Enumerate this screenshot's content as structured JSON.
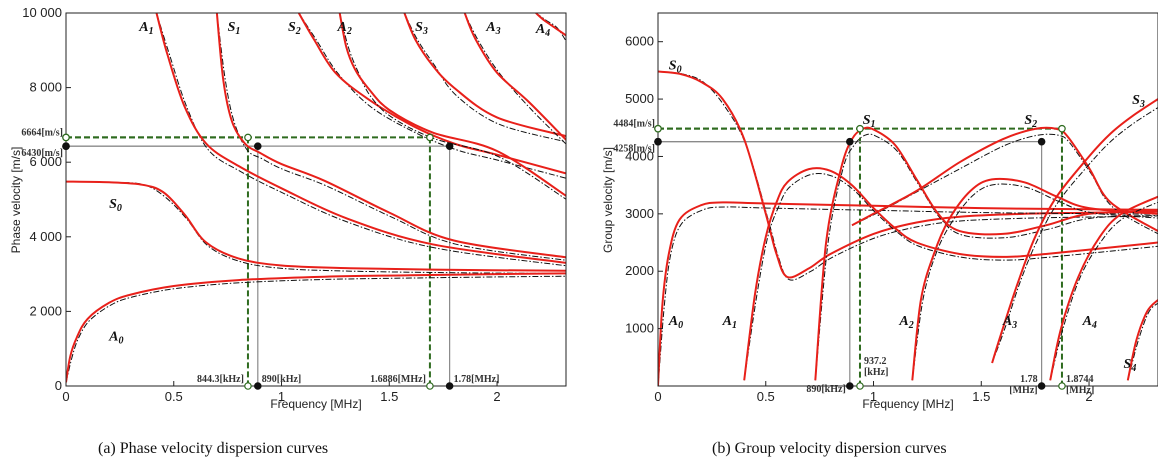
{
  "chart_data": [
    {
      "type": "line",
      "xlabel": "Frequency [MHz]",
      "ylabel": "Phase velocity [m/s]",
      "xlim": [
        0,
        2.32
      ],
      "ylim": [
        0,
        10000
      ],
      "x_ticks": [
        "0",
        "0.5",
        "1",
        "1.5",
        "2"
      ],
      "y_ticks": [
        "0",
        "2 000",
        "4 000",
        "6 000",
        "8 000",
        "10 000"
      ],
      "mode_labels": [
        {
          "text": "A",
          "sub": "1",
          "x": 0.34,
          "y": 9650
        },
        {
          "text": "S",
          "sub": "1",
          "x": 0.75,
          "y": 9650
        },
        {
          "text": "S",
          "sub": "2",
          "x": 1.03,
          "y": 9650
        },
        {
          "text": "A",
          "sub": "2",
          "x": 1.26,
          "y": 9650
        },
        {
          "text": "S",
          "sub": "3",
          "x": 1.62,
          "y": 9650
        },
        {
          "text": "A",
          "sub": "3",
          "x": 1.95,
          "y": 9650
        },
        {
          "text": "A",
          "sub": "4",
          "x": 2.18,
          "y": 9600
        },
        {
          "text": "S",
          "sub": "0",
          "x": 0.2,
          "y": 4900
        },
        {
          "text": "A",
          "sub": "0",
          "x": 0.2,
          "y": 1350
        }
      ],
      "series": [
        {
          "mode": "S0",
          "x": [
            0.0,
            0.2,
            0.35,
            0.45,
            0.55,
            0.65,
            0.8,
            1.0,
            1.3,
            1.7,
            2.32
          ],
          "y": [
            5480,
            5460,
            5400,
            5200,
            4600,
            3850,
            3420,
            3230,
            3160,
            3120,
            3090
          ]
        },
        {
          "mode": "A0",
          "x": [
            0.0,
            0.02,
            0.05,
            0.1,
            0.2,
            0.3,
            0.5,
            0.8,
            1.2,
            1.6,
            2.0,
            2.32
          ],
          "y": [
            100,
            800,
            1300,
            1800,
            2230,
            2450,
            2680,
            2840,
            2930,
            2970,
            3000,
            3020
          ]
        },
        {
          "mode": "A1",
          "x": [
            0.42,
            0.47,
            0.55,
            0.65,
            0.8,
            1.0,
            1.3,
            1.7,
            2.32
          ],
          "y": [
            10000,
            8900,
            7500,
            6500,
            5900,
            5300,
            4500,
            3800,
            3300
          ]
        },
        {
          "mode": "S1",
          "x": [
            0.7,
            0.73,
            0.77,
            0.83,
            0.9,
            1.0,
            1.2,
            1.5,
            1.8,
            2.32
          ],
          "y": [
            10000,
            8200,
            7100,
            6500,
            6250,
            5950,
            5500,
            4650,
            3900,
            3450
          ]
        },
        {
          "mode": "S2",
          "x": [
            1.08,
            1.15,
            1.25,
            1.4,
            1.6,
            1.8,
            2.0,
            2.32
          ],
          "y": [
            10000,
            9300,
            8400,
            7700,
            7000,
            6500,
            6200,
            5700
          ]
        },
        {
          "mode": "A2",
          "x": [
            1.27,
            1.3,
            1.34,
            1.4,
            1.5,
            1.7,
            2.0,
            2.32
          ],
          "y": [
            10000,
            9100,
            8500,
            8000,
            7400,
            6800,
            6300,
            5100
          ]
        },
        {
          "mode": "S3",
          "x": [
            1.57,
            1.62,
            1.7,
            1.8,
            2.0,
            2.32
          ],
          "y": [
            10000,
            9300,
            8600,
            8000,
            7200,
            6700
          ]
        },
        {
          "mode": "A3",
          "x": [
            1.85,
            1.9,
            2.0,
            2.15,
            2.32
          ],
          "y": [
            10000,
            9300,
            8400,
            7600,
            6600
          ]
        },
        {
          "mode": "A4",
          "x": [
            2.18,
            2.22,
            2.27,
            2.32
          ],
          "y": [
            10000,
            9800,
            9600,
            9400
          ]
        }
      ],
      "annotations": {
        "velocity_labels": [
          {
            "text": "6664[m/s]",
            "y": 6664
          },
          {
            "text": "6430[m/s]",
            "y": 6430
          }
        ],
        "frequency_labels": [
          {
            "text": "844.3[kHz]",
            "x": 0.8443
          },
          {
            "text": "890[kHz]",
            "x": 0.89
          },
          {
            "text": "1.6886[MHz]",
            "x": 1.6886
          },
          {
            "text": "1.78[MHz]",
            "x": 1.78
          }
        ]
      }
    },
    {
      "type": "line",
      "xlabel": "Frequency [MHz]",
      "ylabel": "Group velocity [m/s]",
      "xlim": [
        0,
        2.32
      ],
      "ylim": [
        0,
        6500
      ],
      "x_ticks": [
        "0",
        "0.5",
        "1",
        "1.5",
        "2"
      ],
      "y_ticks": [
        "1000",
        "2000",
        "3000",
        "4000",
        "5000",
        "6000"
      ],
      "mode_labels": [
        {
          "text": "S",
          "sub": "0",
          "x": 0.05,
          "y": 5600
        },
        {
          "text": "S",
          "sub": "1",
          "x": 0.95,
          "y": 4650
        },
        {
          "text": "S",
          "sub": "2",
          "x": 1.7,
          "y": 4650
        },
        {
          "text": "S",
          "sub": "3",
          "x": 2.2,
          "y": 5000
        },
        {
          "text": "A",
          "sub": "0",
          "x": 0.05,
          "y": 1150
        },
        {
          "text": "A",
          "sub": "1",
          "x": 0.3,
          "y": 1150
        },
        {
          "text": "A",
          "sub": "2",
          "x": 1.12,
          "y": 1150
        },
        {
          "text": "A",
          "sub": "3",
          "x": 1.6,
          "y": 1150
        },
        {
          "text": "A",
          "sub": "4",
          "x": 1.97,
          "y": 1150
        },
        {
          "text": "S",
          "sub": "4",
          "x": 2.16,
          "y": 400
        }
      ],
      "series": [
        {
          "mode": "S0",
          "x": [
            0.0,
            0.1,
            0.2,
            0.3,
            0.4,
            0.5,
            0.55,
            0.6,
            0.7,
            0.8,
            1.0,
            1.2,
            1.4,
            1.7,
            2.0,
            2.32
          ],
          "y": [
            5480,
            5440,
            5300,
            5000,
            4300,
            3000,
            2300,
            1900,
            2050,
            2300,
            2650,
            2850,
            2950,
            3000,
            3020,
            3040
          ]
        },
        {
          "mode": "A0",
          "x": [
            0.0,
            0.02,
            0.05,
            0.1,
            0.2,
            0.3,
            0.5,
            1.0,
            1.5,
            2.0,
            2.32
          ],
          "y": [
            0,
            1400,
            2300,
            2900,
            3150,
            3200,
            3180,
            3140,
            3100,
            3080,
            3070
          ]
        },
        {
          "mode": "A1",
          "x": [
            0.4,
            0.45,
            0.5,
            0.55,
            0.6,
            0.7,
            0.8,
            0.9,
            1.0,
            1.1,
            1.2,
            1.4,
            1.6,
            1.8,
            2.32
          ],
          "y": [
            100,
            1600,
            2600,
            3200,
            3550,
            3780,
            3750,
            3500,
            3100,
            2750,
            2500,
            2300,
            2250,
            2300,
            2500
          ]
        },
        {
          "mode": "S1",
          "x": [
            0.73,
            0.78,
            0.85,
            0.9,
            0.95,
            1.0,
            1.1,
            1.2,
            1.3,
            1.4,
            1.6,
            1.8,
            2.0,
            2.32
          ],
          "y": [
            100,
            2500,
            3800,
            4300,
            4480,
            4470,
            4200,
            3600,
            3000,
            2700,
            2650,
            2800,
            3000,
            3050
          ]
        },
        {
          "mode": "S2",
          "x": [
            0.9,
            1.0,
            1.2,
            1.4,
            1.6,
            1.75,
            1.85,
            1.9,
            2.0,
            2.1,
            2.32
          ],
          "y": [
            2800,
            3000,
            3400,
            3900,
            4300,
            4480,
            4480,
            4350,
            3800,
            3200,
            2700
          ]
        },
        {
          "mode": "A2",
          "x": [
            1.18,
            1.22,
            1.28,
            1.35,
            1.45,
            1.55,
            1.7,
            1.85,
            2.0,
            2.32
          ],
          "y": [
            100,
            1500,
            2300,
            2900,
            3400,
            3600,
            3550,
            3300,
            3100,
            3000
          ]
        },
        {
          "mode": "A3",
          "x": [
            1.55,
            1.6,
            1.67,
            1.75,
            1.85,
            2.0,
            2.1,
            2.2,
            2.32
          ],
          "y": [
            400,
            1000,
            1800,
            2600,
            3300,
            4000,
            4400,
            4700,
            5000
          ]
        },
        {
          "mode": "A4",
          "x": [
            1.82,
            1.87,
            1.95,
            2.05,
            2.15,
            2.32
          ],
          "y": [
            100,
            1000,
            1900,
            2600,
            3000,
            3300
          ]
        },
        {
          "mode": "S4",
          "x": [
            2.18,
            2.22,
            2.27,
            2.32
          ],
          "y": [
            100,
            800,
            1300,
            1500
          ]
        }
      ],
      "annotations": {
        "velocity_labels": [
          {
            "text": "4484[m/s]",
            "y": 4484
          },
          {
            "text": "4258[m/s]",
            "y": 4258
          }
        ],
        "frequency_labels": [
          {
            "text": "890[kHz]",
            "x": 0.89
          },
          {
            "text": "937.2 [kHz]",
            "x": 0.9372
          },
          {
            "text": "1.78 [MHz]",
            "x": 1.78
          },
          {
            "text": "1.8744 [MHz]",
            "x": 1.8744
          }
        ]
      }
    }
  ],
  "captions": {
    "a": "(a)  Phase velocity dispersion curves",
    "b": "(b)  Group velocity dispersion curves"
  },
  "colors": {
    "model": "#e8201a",
    "reference": "#111111",
    "green_guide": "#2e6b1f",
    "grey_guide": "#8a8a8a"
  }
}
